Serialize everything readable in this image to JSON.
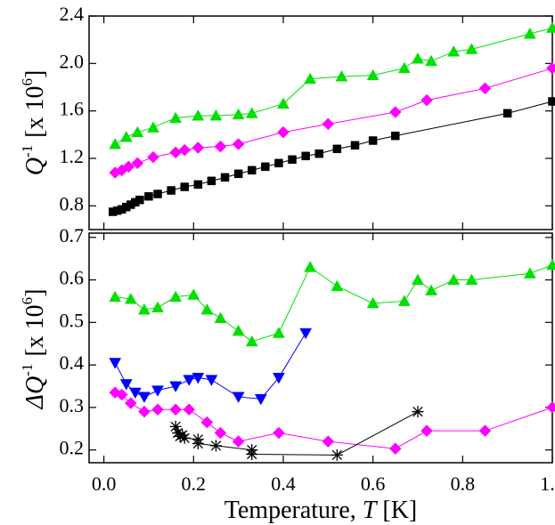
{
  "chart_data": [
    {
      "type": "line",
      "ylabel": [
        "Q",
        "-1",
        "[x 10",
        "6",
        "]"
      ],
      "xlim": [
        -0.033,
        1.0
      ],
      "xticks": [
        {
          "value": 0,
          "label": "0.0"
        },
        0.2,
        0.4,
        0.6,
        0.8,
        {
          "value": 1,
          "label": "1.0"
        }
      ],
      "ylim": [
        0.6,
        2.4
      ],
      "yticks": [
        0.8,
        1.2,
        1.6,
        {
          "value": 2,
          "label": "2.0"
        },
        2.4
      ],
      "series": [
        {
          "color": "#00e000",
          "marker": "triangle",
          "x": [
            0.025,
            0.05,
            0.075,
            0.11,
            0.16,
            0.21,
            0.25,
            0.3,
            0.33,
            0.4,
            0.46,
            0.53,
            0.6,
            0.67,
            0.7,
            0.73,
            0.78,
            0.82,
            0.95,
            1.0
          ],
          "values": [
            1.32,
            1.38,
            1.42,
            1.46,
            1.54,
            1.56,
            1.56,
            1.57,
            1.58,
            1.66,
            1.87,
            1.89,
            1.9,
            1.96,
            2.04,
            2.02,
            2.1,
            2.12,
            2.25,
            2.3
          ]
        },
        {
          "color": "#ff00ff",
          "marker": "diamond",
          "x": [
            0.025,
            0.04,
            0.055,
            0.075,
            0.11,
            0.16,
            0.18,
            0.21,
            0.26,
            0.3,
            0.4,
            0.5,
            0.65,
            0.72,
            0.85,
            1.0
          ],
          "values": [
            1.08,
            1.1,
            1.13,
            1.16,
            1.21,
            1.25,
            1.27,
            1.29,
            1.3,
            1.32,
            1.42,
            1.49,
            1.59,
            1.69,
            1.79,
            1.96
          ]
        },
        {
          "color": "#000000",
          "marker": "square",
          "x": [
            0.02,
            0.03,
            0.04,
            0.05,
            0.06,
            0.07,
            0.08,
            0.1,
            0.12,
            0.15,
            0.18,
            0.21,
            0.24,
            0.27,
            0.3,
            0.33,
            0.36,
            0.39,
            0.42,
            0.45,
            0.48,
            0.52,
            0.56,
            0.6,
            0.65,
            0.9,
            1.0
          ],
          "values": [
            0.75,
            0.76,
            0.77,
            0.79,
            0.81,
            0.83,
            0.85,
            0.88,
            0.9,
            0.93,
            0.96,
            0.98,
            1.01,
            1.04,
            1.07,
            1.1,
            1.13,
            1.16,
            1.19,
            1.22,
            1.24,
            1.28,
            1.31,
            1.35,
            1.39,
            1.58,
            1.68
          ]
        }
      ]
    },
    {
      "type": "line",
      "ylabel": [
        "ΔQ",
        "-1",
        "[x 10",
        "6",
        "]"
      ],
      "xlabel": [
        "Temperature, ",
        "T",
        " [K]"
      ],
      "xlim": [
        -0.033,
        1.0
      ],
      "xticks": [
        {
          "value": 0,
          "label": "0.0"
        },
        0.2,
        0.4,
        0.6,
        0.8,
        {
          "value": 1,
          "label": "1.0"
        }
      ],
      "ylim": [
        0.17,
        0.71
      ],
      "yticks": [
        0.2,
        0.3,
        0.4,
        0.5,
        0.6,
        0.7
      ],
      "series": [
        {
          "color": "#00e000",
          "marker": "triangle",
          "x": [
            0.025,
            0.06,
            0.09,
            0.12,
            0.16,
            0.2,
            0.23,
            0.26,
            0.3,
            0.33,
            0.39,
            0.46,
            0.52,
            0.6,
            0.67,
            0.7,
            0.73,
            0.78,
            0.82,
            0.95,
            1.0
          ],
          "values": [
            0.56,
            0.555,
            0.53,
            0.535,
            0.56,
            0.565,
            0.53,
            0.51,
            0.48,
            0.455,
            0.475,
            0.63,
            0.585,
            0.545,
            0.55,
            0.6,
            0.575,
            0.6,
            0.6,
            0.615,
            0.635
          ]
        },
        {
          "color": "#0000ff",
          "marker": "triangle-down",
          "x": [
            0.025,
            0.05,
            0.07,
            0.09,
            0.12,
            0.16,
            0.19,
            0.21,
            0.24,
            0.3,
            0.35,
            0.39,
            0.45
          ],
          "values": [
            0.405,
            0.355,
            0.335,
            0.325,
            0.34,
            0.35,
            0.365,
            0.37,
            0.365,
            0.325,
            0.32,
            0.37,
            0.475
          ]
        },
        {
          "color": "#ff00ff",
          "marker": "diamond",
          "x": [
            0.025,
            0.04,
            0.06,
            0.09,
            0.12,
            0.16,
            0.19,
            0.23,
            0.26,
            0.3,
            0.39,
            0.5,
            0.65,
            0.72,
            0.85,
            1.0
          ],
          "values": [
            0.335,
            0.33,
            0.31,
            0.29,
            0.295,
            0.295,
            0.295,
            0.265,
            0.24,
            0.22,
            0.24,
            0.22,
            0.203,
            0.245,
            0.245,
            0.3
          ]
        },
        {
          "color": "#000000",
          "marker": "asterisk",
          "x": [
            0.16,
            0.165,
            0.17,
            0.175,
            0.18,
            0.21,
            0.21,
            0.25,
            0.33,
            0.33,
            0.52,
            0.7
          ],
          "values": [
            0.255,
            0.24,
            0.232,
            0.235,
            0.228,
            0.225,
            0.215,
            0.21,
            0.2,
            0.19,
            0.188,
            0.29
          ]
        }
      ]
    }
  ]
}
